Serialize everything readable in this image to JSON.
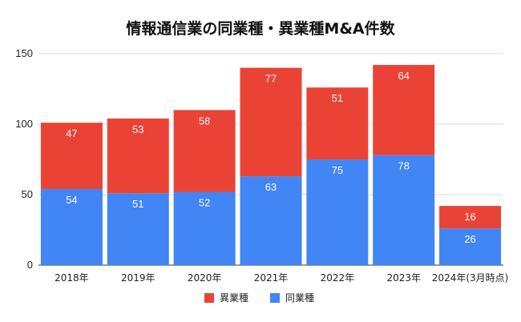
{
  "chart_data": {
    "type": "bar",
    "stacked": true,
    "title": "情報通信業の同業種・異業種M&A件数",
    "categories": [
      "2018年",
      "2019年",
      "2020年",
      "2021年",
      "2022年",
      "2023年",
      "2024年(3月時点)"
    ],
    "series": [
      {
        "name": "同業種",
        "color": "#4285f4",
        "values": [
          54,
          51,
          52,
          63,
          75,
          78,
          26
        ]
      },
      {
        "name": "異業種",
        "color": "#ea4335",
        "values": [
          47,
          53,
          58,
          77,
          51,
          64,
          16
        ]
      }
    ],
    "ylim": [
      0,
      150
    ],
    "yticks": [
      0,
      50,
      100,
      150
    ],
    "grid": true,
    "legend_position": "bottom",
    "legend_order": [
      "異業種",
      "同業種"
    ]
  }
}
